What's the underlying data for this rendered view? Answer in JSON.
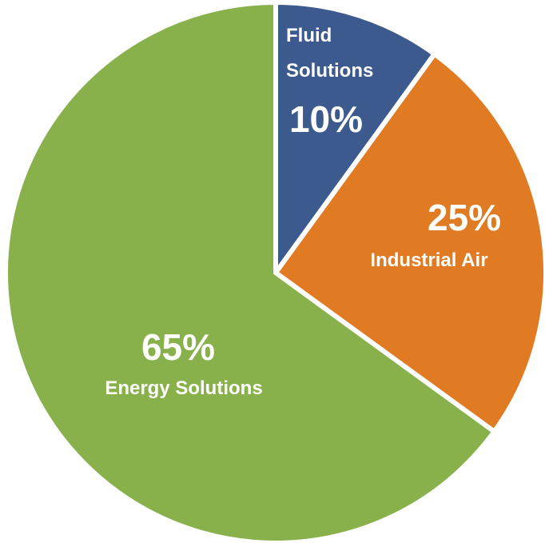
{
  "chart_data": {
    "type": "pie",
    "title": "",
    "slices": [
      {
        "label_lines": [
          "Fluid",
          "Solutions"
        ],
        "value": 10,
        "value_label": "10%",
        "color": "#3C5A8E"
      },
      {
        "label_lines": [
          "Industrial Air"
        ],
        "value": 25,
        "value_label": "25%",
        "color": "#E07B24"
      },
      {
        "label_lines": [
          "Energy Solutions"
        ],
        "value": 65,
        "value_label": "65%",
        "color": "#88B04B"
      }
    ],
    "legend": "none"
  }
}
